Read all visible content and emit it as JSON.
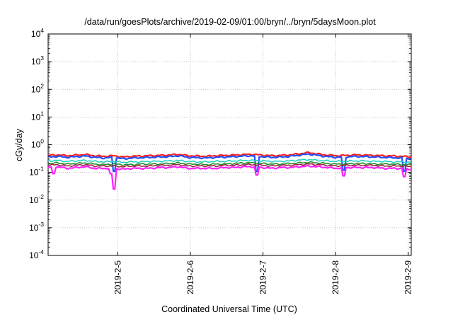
{
  "chart_data": {
    "type": "line",
    "title": "/data/run/goesPlots/archive/2019-02-09/01:00/bryn/../bryn/5daysMoon.plot",
    "xlabel": "Coordinated Universal Time (UTC)",
    "ylabel": "cGy/day",
    "y_scale": "log",
    "ylim": [
      0.0001,
      10000
    ],
    "y_ticks": [
      {
        "base": "10",
        "exp": "-4",
        "value": 0.0001
      },
      {
        "base": "10",
        "exp": "-3",
        "value": 0.001
      },
      {
        "base": "10",
        "exp": "-2",
        "value": 0.01
      },
      {
        "base": "10",
        "exp": "-1",
        "value": 0.1
      },
      {
        "base": "10",
        "exp": "0",
        "value": 1
      },
      {
        "base": "10",
        "exp": "1",
        "value": 10
      },
      {
        "base": "10",
        "exp": "2",
        "value": 100
      },
      {
        "base": "10",
        "exp": "3",
        "value": 1000
      },
      {
        "base": "10",
        "exp": "4",
        "value": 10000
      }
    ],
    "x_range": [
      "2019-02-04T01:00",
      "2019-02-09T01:00"
    ],
    "x_ticks": [
      "2019-2-5",
      "2019-2-6",
      "2019-2-7",
      "2019-2-8",
      "2019-2-9"
    ],
    "grid": true,
    "legend": "none",
    "series": [
      {
        "color": "#ff2020",
        "values": [
          0.41,
          0.43,
          0.4,
          0.42,
          0.44,
          0.4,
          0.38,
          0.4,
          0.36,
          0.38,
          0.39,
          0.4,
          0.41,
          0.42,
          0.45,
          0.4,
          0.39,
          0.38,
          0.4,
          0.41,
          0.42,
          0.44,
          0.45,
          0.42,
          0.4,
          0.41,
          0.43,
          0.47,
          0.52,
          0.46,
          0.42,
          0.4,
          0.41,
          0.43,
          0.42,
          0.41,
          0.4,
          0.39,
          0.38,
          0.36
        ]
      },
      {
        "color": "#2050ff",
        "values": [
          0.36,
          0.38,
          0.35,
          0.37,
          0.39,
          0.35,
          0.33,
          0.35,
          0.31,
          0.33,
          0.34,
          0.35,
          0.36,
          0.37,
          0.4,
          0.35,
          0.34,
          0.33,
          0.35,
          0.36,
          0.37,
          0.39,
          0.4,
          0.37,
          0.35,
          0.36,
          0.38,
          0.42,
          0.46,
          0.41,
          0.37,
          0.35,
          0.36,
          0.38,
          0.37,
          0.36,
          0.35,
          0.34,
          0.33,
          0.31
        ]
      },
      {
        "color": "#20d0c0",
        "values": [
          0.26,
          0.27,
          0.25,
          0.26,
          0.27,
          0.25,
          0.24,
          0.25,
          0.23,
          0.24,
          0.24,
          0.25,
          0.25,
          0.26,
          0.27,
          0.25,
          0.24,
          0.24,
          0.25,
          0.25,
          0.26,
          0.27,
          0.27,
          0.26,
          0.25,
          0.25,
          0.26,
          0.28,
          0.29,
          0.27,
          0.26,
          0.25,
          0.25,
          0.26,
          0.26,
          0.25,
          0.25,
          0.24,
          0.24,
          0.23
        ]
      },
      {
        "color": "#228b22",
        "values": [
          0.21,
          0.22,
          0.2,
          0.21,
          0.22,
          0.2,
          0.19,
          0.2,
          0.19,
          0.19,
          0.2,
          0.2,
          0.2,
          0.21,
          0.22,
          0.2,
          0.2,
          0.19,
          0.2,
          0.2,
          0.21,
          0.22,
          0.22,
          0.21,
          0.2,
          0.2,
          0.21,
          0.22,
          0.23,
          0.22,
          0.21,
          0.2,
          0.2,
          0.21,
          0.21,
          0.2,
          0.2,
          0.2,
          0.19,
          0.19
        ]
      },
      {
        "color": "#a0224a",
        "values": [
          0.18,
          0.19,
          0.17,
          0.18,
          0.19,
          0.17,
          0.17,
          0.17,
          0.16,
          0.17,
          0.17,
          0.17,
          0.18,
          0.18,
          0.19,
          0.17,
          0.17,
          0.17,
          0.17,
          0.18,
          0.18,
          0.19,
          0.19,
          0.18,
          0.17,
          0.18,
          0.18,
          0.19,
          0.2,
          0.19,
          0.18,
          0.17,
          0.18,
          0.18,
          0.18,
          0.18,
          0.17,
          0.17,
          0.17,
          0.16
        ]
      },
      {
        "color": "#ff20ff",
        "values": [
          0.15,
          0.16,
          0.14,
          0.15,
          0.16,
          0.14,
          0.14,
          0.14,
          0.13,
          0.14,
          0.14,
          0.14,
          0.15,
          0.15,
          0.16,
          0.14,
          0.14,
          0.14,
          0.14,
          0.15,
          0.15,
          0.16,
          0.16,
          0.15,
          0.14,
          0.15,
          0.15,
          0.16,
          0.17,
          0.16,
          0.15,
          0.14,
          0.15,
          0.15,
          0.15,
          0.15,
          0.14,
          0.14,
          0.14,
          0.13
        ]
      }
    ],
    "dips": [
      {
        "color": "#ff20ff",
        "x_frac": 0.013,
        "value": 0.09
      },
      {
        "color": "#ff20ff",
        "x_frac": 0.17,
        "value": 0.09
      },
      {
        "color": "#ff20ff",
        "x_frac": 0.178,
        "value": 0.025
      },
      {
        "color": "#ff20ff",
        "x_frac": 0.571,
        "value": 0.08
      },
      {
        "color": "#ff20ff",
        "x_frac": 0.812,
        "value": 0.075
      },
      {
        "color": "#ff20ff",
        "x_frac": 0.98,
        "value": 0.07
      },
      {
        "color": "#2050ff",
        "x_frac": 0.178,
        "value": 0.11
      },
      {
        "color": "#2050ff",
        "x_frac": 0.571,
        "value": 0.11
      },
      {
        "color": "#2050ff",
        "x_frac": 0.812,
        "value": 0.12
      },
      {
        "color": "#2050ff",
        "x_frac": 0.98,
        "value": 0.11
      }
    ]
  }
}
